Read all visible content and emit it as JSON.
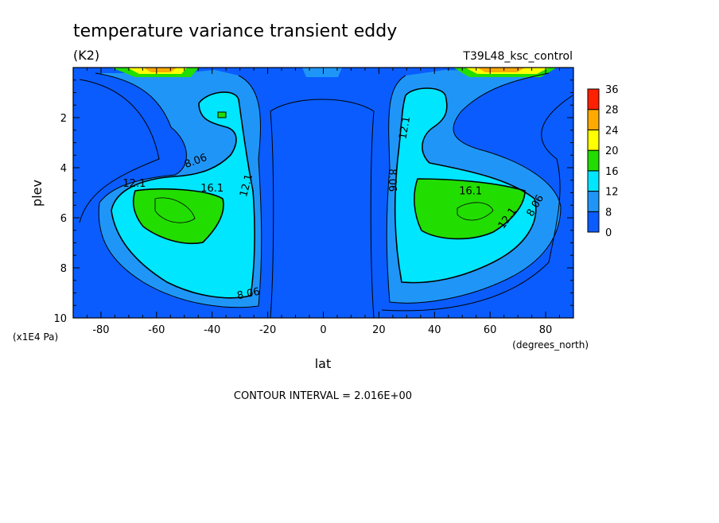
{
  "chart_data": {
    "type": "heatmap",
    "title": "temperature variance transient eddy",
    "units": "(K2)",
    "dataset": "T39L48_ksc_control",
    "xlabel": "lat",
    "xunits": "(degrees_north)",
    "ylabel": "plev",
    "yunits": "(x1E4 Pa)",
    "footer": "CONTOUR INTERVAL = 2.016E+00",
    "xlim": [
      -90,
      90
    ],
    "ylim": [
      0,
      10
    ],
    "y_inverted": true,
    "x_ticks": [
      "-80",
      "-60",
      "-40",
      "-20",
      "0",
      "20",
      "40",
      "60",
      "80"
    ],
    "y_ticks": [
      "2",
      "4",
      "6",
      "8",
      "10"
    ],
    "contour_labels": [
      {
        "text": "8.06",
        "x": -46,
        "y": 3.7,
        "angle": -20
      },
      {
        "text": "12.1",
        "x": -68,
        "y": 4.6,
        "angle": 0
      },
      {
        "text": "16.1",
        "x": -40,
        "y": 4.8,
        "angle": 0
      },
      {
        "text": "12.1",
        "x": -28,
        "y": 4.7,
        "angle": -75
      },
      {
        "text": "8.06",
        "x": -27,
        "y": 9.0,
        "angle": -12
      },
      {
        "text": "12.1",
        "x": 29,
        "y": 2.4,
        "angle": -80
      },
      {
        "text": "8.06",
        "x": 25,
        "y": 4.5,
        "angle": 90
      },
      {
        "text": "16.1",
        "x": 53,
        "y": 4.9,
        "angle": 0
      },
      {
        "text": "12.1",
        "x": 66,
        "y": 6.0,
        "angle": -55
      },
      {
        "text": "8.06",
        "x": 76,
        "y": 5.5,
        "angle": -60
      }
    ],
    "colorbar": {
      "levels": [
        "0",
        "8",
        "12",
        "16",
        "20",
        "24",
        "28",
        "36"
      ],
      "colors": [
        "#0a5cff",
        "#1f96f7",
        "#00e6ff",
        "#22dd00",
        "#ffff00",
        "#ffaa00",
        "#ff2000"
      ]
    }
  }
}
